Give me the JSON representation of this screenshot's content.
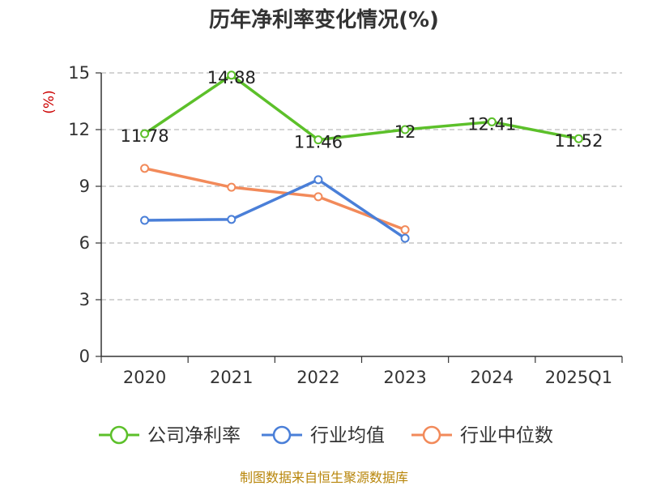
{
  "chart_data": {
    "type": "line",
    "title": "历年净利率变化情况(%)",
    "unit_label": "(%)",
    "categories": [
      "2020",
      "2021",
      "2022",
      "2023",
      "2024",
      "2025Q1"
    ],
    "yticks": [
      "0",
      "3",
      "6",
      "9",
      "12",
      "15"
    ],
    "ylim": [
      0,
      15
    ],
    "grid": true,
    "legend_placement": "bottom",
    "series": [
      {
        "name": "公司净利率",
        "color": "#5cc02a",
        "values": [
          11.78,
          14.88,
          11.46,
          12,
          12.41,
          11.52
        ],
        "labels": [
          "11.78",
          "14.88",
          "11.46",
          "12",
          "12.41",
          "11.52"
        ]
      },
      {
        "name": "行业均值",
        "color": "#4a7fd8",
        "values": [
          7.2,
          7.25,
          9.35,
          6.25,
          null,
          null
        ]
      },
      {
        "name": "行业中位数",
        "color": "#f28a5a",
        "values": [
          9.95,
          8.95,
          8.45,
          6.7,
          null,
          null
        ]
      }
    ]
  },
  "source": "制图数据来自恒生聚源数据库"
}
